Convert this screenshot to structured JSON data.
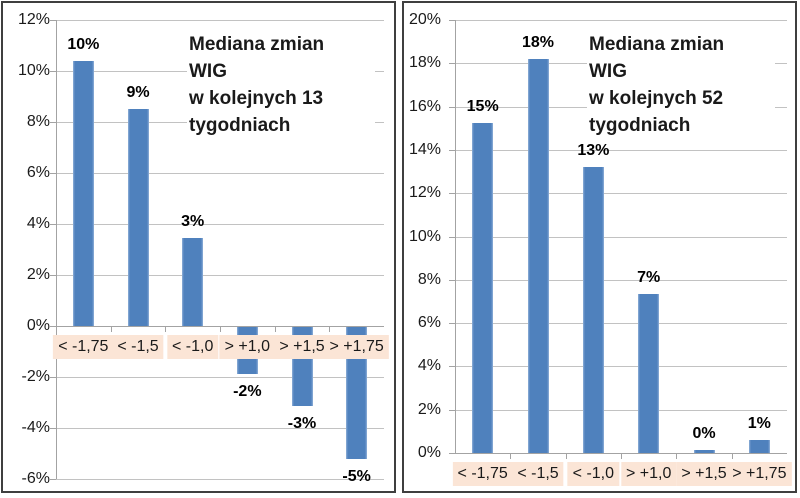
{
  "chart_data": [
    {
      "type": "bar",
      "title": "Mediana zmian WIG\nw kolejnych 13\ntygodniach",
      "categories": [
        "< -1,75",
        "< -1,5",
        "< -1,0",
        "> +1,0",
        "> +1,5",
        "> +1,75"
      ],
      "values": [
        10.4,
        8.5,
        3.45,
        -1.9,
        -3.15,
        -5.2
      ],
      "bar_labels": [
        "10%",
        "9%",
        "3%",
        "-2%",
        "-3%",
        "-5%"
      ],
      "ylim": [
        -6,
        12
      ],
      "ytick_step": 2,
      "ytick_labels": [
        "12%",
        "10%",
        "8%",
        "6%",
        "4%",
        "2%",
        "0%",
        "-2%",
        "-4%",
        "-6%"
      ],
      "xlabel": "",
      "ylabel": "",
      "grid": true,
      "legend": false
    },
    {
      "type": "bar",
      "title": "Mediana zmian WIG\nw kolejnych 52\ntygodniach",
      "categories": [
        "< -1,75",
        "< -1,5",
        "< -1,0",
        "> +1,0",
        "> +1,5",
        "> +1,75"
      ],
      "values": [
        15.25,
        18.2,
        13.2,
        7.35,
        0.15,
        0.6
      ],
      "bar_labels": [
        "15%",
        "18%",
        "13%",
        "7%",
        "0%",
        "1%"
      ],
      "ylim": [
        0,
        20
      ],
      "ytick_step": 2,
      "ytick_labels": [
        "20%",
        "18%",
        "16%",
        "14%",
        "12%",
        "10%",
        "8%",
        "6%",
        "4%",
        "2%",
        "0%"
      ],
      "xlabel": "",
      "ylabel": "",
      "grid": true,
      "legend": false
    }
  ],
  "colors": {
    "bar": "#4f81bd",
    "bar_edge_light": "#8fafd8",
    "grid": "#c2c2c2",
    "axis": "#a3a3a3",
    "category_bg": "#fbe5d6",
    "text": "#1a1a1a",
    "panel_border": "#3f3f3f",
    "background": "#ffffff"
  }
}
